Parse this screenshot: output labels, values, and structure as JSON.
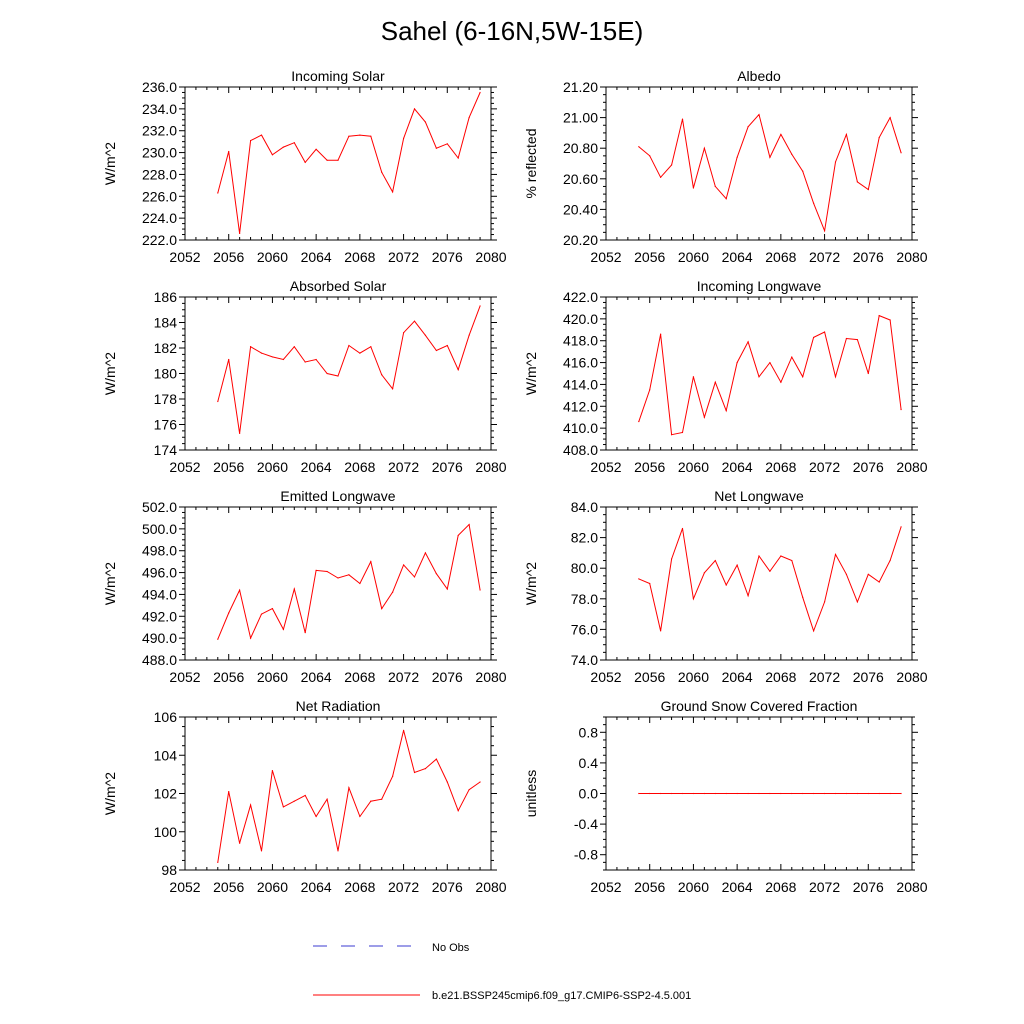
{
  "figure": {
    "title": "Sahel (6-16N,5W-15E)"
  },
  "legend": {
    "items": [
      {
        "label": "No Obs",
        "color": "#3b3bd0",
        "style": "dashed"
      },
      {
        "label": "b.e21.BSSP245cmip6.f09_g17.CMIP6-SSP2-4.5.001",
        "color": "#ff0000",
        "style": "solid"
      }
    ]
  },
  "chart_data": [
    {
      "id": "incoming-solar",
      "type": "line",
      "title": "Incoming Solar",
      "ylabel": "W/m^2",
      "xlim": [
        2052,
        2080
      ],
      "xticks": [
        2052,
        2056,
        2060,
        2064,
        2068,
        2072,
        2076,
        2080
      ],
      "ylim": [
        222,
        236
      ],
      "yticks": [
        222,
        224,
        226,
        228,
        230,
        232,
        234,
        236
      ],
      "ytick_labels": [
        "222.0",
        "224.0",
        "226.0",
        "228.0",
        "230.0",
        "232.0",
        "234.0",
        "236.0"
      ],
      "x": [
        2055,
        2056,
        2057,
        2058,
        2059,
        2060,
        2061,
        2062,
        2063,
        2064,
        2065,
        2066,
        2067,
        2068,
        2069,
        2070,
        2071,
        2072,
        2073,
        2074,
        2075,
        2076,
        2077,
        2078,
        2079
      ],
      "series": [
        {
          "name": "b.e21.BSSP245cmip6.f09_g17.CMIP6-SSP2-4.5.001",
          "color": "#ff0000",
          "values": [
            226.3,
            230.1,
            222.6,
            231.1,
            231.6,
            229.8,
            230.5,
            230.9,
            229.1,
            230.3,
            229.3,
            229.3,
            231.5,
            231.6,
            231.5,
            228.2,
            226.4,
            231.3,
            234.0,
            232.8,
            230.4,
            230.8,
            229.5,
            233.2,
            235.5
          ]
        }
      ]
    },
    {
      "id": "albedo",
      "type": "line",
      "title": "Albedo",
      "ylabel": "% reflected",
      "xlim": [
        2052,
        2080
      ],
      "xticks": [
        2052,
        2056,
        2060,
        2064,
        2068,
        2072,
        2076,
        2080
      ],
      "ylim": [
        20.2,
        21.2
      ],
      "yticks": [
        20.2,
        20.4,
        20.6,
        20.8,
        21.0,
        21.2
      ],
      "ytick_labels": [
        "20.20",
        "20.40",
        "20.60",
        "20.80",
        "21.00",
        "21.20"
      ],
      "x": [
        2055,
        2056,
        2057,
        2058,
        2059,
        2060,
        2061,
        2062,
        2063,
        2064,
        2065,
        2066,
        2067,
        2068,
        2069,
        2070,
        2071,
        2072,
        2073,
        2074,
        2075,
        2076,
        2077,
        2078,
        2079
      ],
      "series": [
        {
          "name": "b.e21.BSSP245cmip6.f09_g17.CMIP6-SSP2-4.5.001",
          "color": "#ff0000",
          "values": [
            20.81,
            20.75,
            20.61,
            20.69,
            20.99,
            20.54,
            20.8,
            20.55,
            20.47,
            20.74,
            20.94,
            21.02,
            20.74,
            20.89,
            20.76,
            20.65,
            20.44,
            20.26,
            20.71,
            20.89,
            20.58,
            20.53,
            20.87,
            21.0,
            20.77
          ]
        }
      ]
    },
    {
      "id": "absorbed-solar",
      "type": "line",
      "title": "Absorbed Solar",
      "ylabel": "W/m^2",
      "xlim": [
        2052,
        2080
      ],
      "xticks": [
        2052,
        2056,
        2060,
        2064,
        2068,
        2072,
        2076,
        2080
      ],
      "ylim": [
        174,
        186
      ],
      "yticks": [
        174,
        176,
        178,
        180,
        182,
        184,
        186
      ],
      "ytick_labels": [
        "174",
        "176",
        "178",
        "180",
        "182",
        "184",
        "186"
      ],
      "x": [
        2055,
        2056,
        2057,
        2058,
        2059,
        2060,
        2061,
        2062,
        2063,
        2064,
        2065,
        2066,
        2067,
        2068,
        2069,
        2070,
        2071,
        2072,
        2073,
        2074,
        2075,
        2076,
        2077,
        2078,
        2079
      ],
      "series": [
        {
          "name": "b.e21.BSSP245cmip6.f09_g17.CMIP6-SSP2-4.5.001",
          "color": "#ff0000",
          "values": [
            177.8,
            181.1,
            175.3,
            182.1,
            181.6,
            181.3,
            181.1,
            182.1,
            180.9,
            181.1,
            180.0,
            179.8,
            182.2,
            181.6,
            182.1,
            179.9,
            178.8,
            183.2,
            184.1,
            183.0,
            181.8,
            182.2,
            180.3,
            183.0,
            185.3
          ]
        }
      ]
    },
    {
      "id": "incoming-longwave",
      "type": "line",
      "title": "Incoming Longwave",
      "ylabel": "W/m^2",
      "xlim": [
        2052,
        2080
      ],
      "xticks": [
        2052,
        2056,
        2060,
        2064,
        2068,
        2072,
        2076,
        2080
      ],
      "ylim": [
        408,
        422
      ],
      "yticks": [
        408,
        410,
        412,
        414,
        416,
        418,
        420,
        422
      ],
      "ytick_labels": [
        "408.0",
        "410.0",
        "412.0",
        "414.0",
        "416.0",
        "418.0",
        "420.0",
        "422.0"
      ],
      "x": [
        2055,
        2056,
        2057,
        2058,
        2059,
        2060,
        2061,
        2062,
        2063,
        2064,
        2065,
        2066,
        2067,
        2068,
        2069,
        2070,
        2071,
        2072,
        2073,
        2074,
        2075,
        2076,
        2077,
        2078,
        2079
      ],
      "series": [
        {
          "name": "b.e21.BSSP245cmip6.f09_g17.CMIP6-SSP2-4.5.001",
          "color": "#ff0000",
          "values": [
            410.6,
            413.5,
            418.6,
            409.4,
            409.6,
            414.7,
            411.0,
            414.2,
            411.6,
            416.0,
            417.9,
            414.7,
            416.0,
            414.2,
            416.5,
            414.7,
            418.3,
            418.8,
            414.7,
            418.2,
            418.1,
            415.0,
            420.3,
            419.9,
            411.7
          ]
        }
      ]
    },
    {
      "id": "emitted-longwave",
      "type": "line",
      "title": "Emitted Longwave",
      "ylabel": "W/m^2",
      "xlim": [
        2052,
        2080
      ],
      "xticks": [
        2052,
        2056,
        2060,
        2064,
        2068,
        2072,
        2076,
        2080
      ],
      "ylim": [
        488,
        502
      ],
      "yticks": [
        488,
        490,
        492,
        494,
        496,
        498,
        500,
        502
      ],
      "ytick_labels": [
        "488.0",
        "490.0",
        "492.0",
        "494.0",
        "496.0",
        "498.0",
        "500.0",
        "502.0"
      ],
      "x": [
        2055,
        2056,
        2057,
        2058,
        2059,
        2060,
        2061,
        2062,
        2063,
        2064,
        2065,
        2066,
        2067,
        2068,
        2069,
        2070,
        2071,
        2072,
        2073,
        2074,
        2075,
        2076,
        2077,
        2078,
        2079
      ],
      "series": [
        {
          "name": "b.e21.BSSP245cmip6.f09_g17.CMIP6-SSP2-4.5.001",
          "color": "#ff0000",
          "values": [
            489.9,
            492.3,
            494.4,
            490.0,
            492.2,
            492.7,
            490.8,
            494.5,
            490.5,
            496.2,
            496.1,
            495.5,
            495.8,
            495.0,
            497.0,
            492.7,
            494.2,
            496.7,
            495.6,
            497.8,
            495.9,
            494.5,
            499.4,
            500.4,
            494.4
          ]
        }
      ]
    },
    {
      "id": "net-longwave",
      "type": "line",
      "title": "Net Longwave",
      "ylabel": "W/m^2",
      "xlim": [
        2052,
        2080
      ],
      "xticks": [
        2052,
        2056,
        2060,
        2064,
        2068,
        2072,
        2076,
        2080
      ],
      "ylim": [
        74,
        84
      ],
      "yticks": [
        74,
        76,
        78,
        80,
        82,
        84
      ],
      "ytick_labels": [
        "74.0",
        "76.0",
        "78.0",
        "80.0",
        "82.0",
        "84.0"
      ],
      "x": [
        2055,
        2056,
        2057,
        2058,
        2059,
        2060,
        2061,
        2062,
        2063,
        2064,
        2065,
        2066,
        2067,
        2068,
        2069,
        2070,
        2071,
        2072,
        2073,
        2074,
        2075,
        2076,
        2077,
        2078,
        2079
      ],
      "series": [
        {
          "name": "b.e21.BSSP245cmip6.f09_g17.CMIP6-SSP2-4.5.001",
          "color": "#ff0000",
          "values": [
            79.3,
            79.0,
            75.9,
            80.6,
            82.6,
            78.0,
            79.7,
            80.5,
            78.9,
            80.2,
            78.2,
            80.8,
            79.8,
            80.8,
            80.5,
            78.1,
            75.9,
            77.8,
            80.9,
            79.6,
            77.8,
            79.6,
            79.1,
            80.5,
            82.7
          ]
        }
      ]
    },
    {
      "id": "net-radiation",
      "type": "line",
      "title": "Net Radiation",
      "ylabel": "W/m^2",
      "xlim": [
        2052,
        2080
      ],
      "xticks": [
        2052,
        2056,
        2060,
        2064,
        2068,
        2072,
        2076,
        2080
      ],
      "ylim": [
        98,
        106
      ],
      "yticks": [
        98,
        100,
        102,
        104,
        106
      ],
      "ytick_labels": [
        "98",
        "100",
        "102",
        "104",
        "106"
      ],
      "x": [
        2055,
        2056,
        2057,
        2058,
        2059,
        2060,
        2061,
        2062,
        2063,
        2064,
        2065,
        2066,
        2067,
        2068,
        2069,
        2070,
        2071,
        2072,
        2073,
        2074,
        2075,
        2076,
        2077,
        2078,
        2079
      ],
      "series": [
        {
          "name": "b.e21.BSSP245cmip6.f09_g17.CMIP6-SSP2-4.5.001",
          "color": "#ff0000",
          "values": [
            98.4,
            102.1,
            99.4,
            101.4,
            99.0,
            103.2,
            101.3,
            101.6,
            101.9,
            100.8,
            101.7,
            99.0,
            102.3,
            100.8,
            101.6,
            101.7,
            102.9,
            105.3,
            103.1,
            103.3,
            103.8,
            102.6,
            101.1,
            102.2,
            102.6
          ]
        }
      ]
    },
    {
      "id": "ground-snow-covered-fraction",
      "type": "line",
      "title": "Ground Snow Covered Fraction",
      "ylabel": "unitless",
      "xlim": [
        2052,
        2080
      ],
      "xticks": [
        2052,
        2056,
        2060,
        2064,
        2068,
        2072,
        2076,
        2080
      ],
      "ylim": [
        -1.0,
        1.0
      ],
      "yticks": [
        -0.8,
        -0.4,
        0.0,
        0.4,
        0.8
      ],
      "ytick_labels": [
        "-0.8",
        "-0.4",
        "0.0",
        "0.4",
        "0.8"
      ],
      "x": [
        2055,
        2056,
        2057,
        2058,
        2059,
        2060,
        2061,
        2062,
        2063,
        2064,
        2065,
        2066,
        2067,
        2068,
        2069,
        2070,
        2071,
        2072,
        2073,
        2074,
        2075,
        2076,
        2077,
        2078,
        2079
      ],
      "series": [
        {
          "name": "b.e21.BSSP245cmip6.f09_g17.CMIP6-SSP2-4.5.001",
          "color": "#ff0000",
          "values": [
            0,
            0,
            0,
            0,
            0,
            0,
            0,
            0,
            0,
            0,
            0,
            0,
            0,
            0,
            0,
            0,
            0,
            0,
            0,
            0,
            0,
            0,
            0,
            0,
            0
          ]
        }
      ]
    }
  ]
}
